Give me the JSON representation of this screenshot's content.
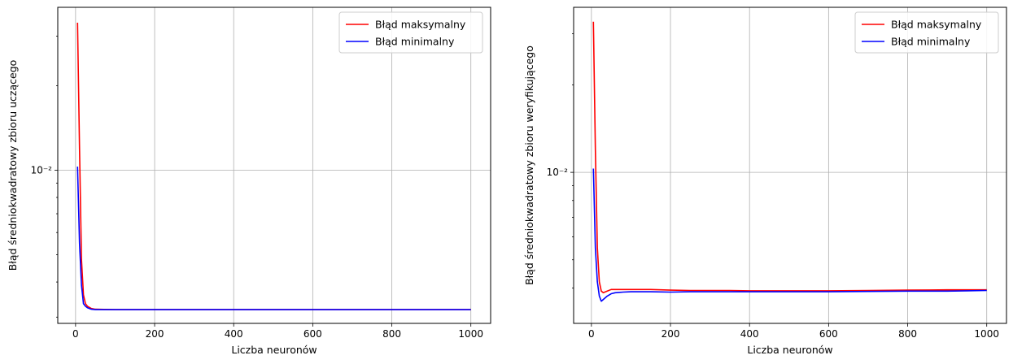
{
  "chart_data": [
    {
      "type": "line",
      "title": "",
      "xlabel": "Liczba neuronów",
      "ylabel": "Błąd średniokwadratowy zbioru uczącego",
      "xscale": "linear",
      "yscale": "log",
      "xlim": [
        -45,
        1050
      ],
      "ylim": [
        0.00285,
        0.038
      ],
      "xticks": [
        0,
        200,
        400,
        600,
        800,
        1000
      ],
      "xtick_labels": [
        "0",
        "200",
        "400",
        "600",
        "800",
        "1000"
      ],
      "yticks": [
        0.01
      ],
      "ytick_labels": [
        "10⁻²"
      ],
      "grid": true,
      "legend_position": "top-right",
      "series": [
        {
          "name": "Błąd maksymalny",
          "color": "#ff0000",
          "x": [
            5,
            10,
            15,
            20,
            25,
            30,
            40,
            50,
            75,
            100,
            150,
            200,
            300,
            400,
            500,
            600,
            700,
            800,
            900,
            1000
          ],
          "y": [
            0.0335,
            0.012,
            0.0048,
            0.0036,
            0.00335,
            0.00328,
            0.00322,
            0.0032,
            0.003195,
            0.00319,
            0.00319,
            0.00319,
            0.00319,
            0.00319,
            0.00319,
            0.00319,
            0.00319,
            0.00319,
            0.00319,
            0.00319
          ]
        },
        {
          "name": "Błąd minimalny",
          "color": "#0000ff",
          "x": [
            5,
            10,
            15,
            20,
            25,
            30,
            40,
            50,
            75,
            100,
            150,
            200,
            300,
            400,
            500,
            600,
            700,
            800,
            900,
            1000
          ],
          "y": [
            0.0103,
            0.0055,
            0.0039,
            0.00335,
            0.00328,
            0.00324,
            0.0032,
            0.00319,
            0.00319,
            0.00319,
            0.00319,
            0.00319,
            0.00319,
            0.00319,
            0.00319,
            0.00319,
            0.00319,
            0.00319,
            0.00319,
            0.00319
          ]
        }
      ]
    },
    {
      "type": "line",
      "title": "",
      "xlabel": "Liczba neuronów",
      "ylabel": "Błąd średniokwadratowy zbioru weryfikującego",
      "xscale": "linear",
      "yscale": "log",
      "xlim": [
        -45,
        1050
      ],
      "ylim": [
        0.00302,
        0.037
      ],
      "xticks": [
        0,
        200,
        400,
        600,
        800,
        1000
      ],
      "xtick_labels": [
        "0",
        "200",
        "400",
        "600",
        "800",
        "1000"
      ],
      "yticks": [
        0.01
      ],
      "ytick_labels": [
        "10⁻²"
      ],
      "grid": true,
      "legend_position": "top-right",
      "series": [
        {
          "name": "Błąd maksymalny",
          "color": "#ff0000",
          "x": [
            5,
            10,
            15,
            20,
            25,
            30,
            40,
            50,
            60,
            80,
            100,
            150,
            200,
            250,
            300,
            350,
            400,
            500,
            600,
            700,
            800,
            900,
            950,
            1000
          ],
          "y": [
            0.033,
            0.012,
            0.0055,
            0.0042,
            0.0039,
            0.00385,
            0.0039,
            0.00395,
            0.00395,
            0.00395,
            0.00395,
            0.00395,
            0.00393,
            0.00392,
            0.00392,
            0.00392,
            0.00391,
            0.00391,
            0.00391,
            0.00392,
            0.00393,
            0.00394,
            0.00394,
            0.00394
          ]
        },
        {
          "name": "Błąd minimalny",
          "color": "#0000ff",
          "x": [
            5,
            10,
            15,
            20,
            25,
            30,
            40,
            50,
            60,
            80,
            100,
            150,
            200,
            250,
            300,
            350,
            400,
            500,
            600,
            700,
            800,
            900,
            950,
            1000
          ],
          "y": [
            0.0103,
            0.0055,
            0.0042,
            0.00375,
            0.0036,
            0.00365,
            0.00375,
            0.00382,
            0.00385,
            0.00387,
            0.00388,
            0.00388,
            0.00387,
            0.00388,
            0.00388,
            0.00388,
            0.00388,
            0.00388,
            0.00388,
            0.00389,
            0.0039,
            0.0039,
            0.00391,
            0.00392
          ]
        }
      ]
    }
  ]
}
